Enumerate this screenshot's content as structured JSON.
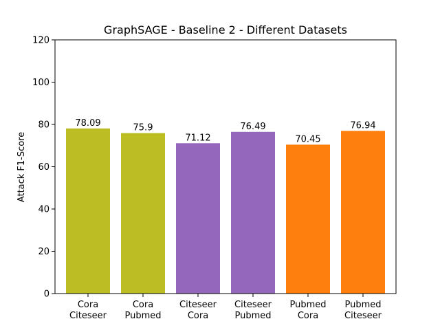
{
  "chart_data": {
    "type": "bar",
    "title": "GraphSAGE - Baseline 2 - Different Datasets",
    "xlabel": "",
    "ylabel": "Attack F1-Score",
    "ylim": [
      0,
      120
    ],
    "yticks": [
      0,
      20,
      40,
      60,
      80,
      100,
      120
    ],
    "grid": false,
    "legend": "none",
    "categories": [
      [
        "Cora",
        "Citeseer"
      ],
      [
        "Cora",
        "Pubmed"
      ],
      [
        "Citeseer",
        "Cora"
      ],
      [
        "Citeseer",
        "Pubmed"
      ],
      [
        "Pubmed",
        "Cora"
      ],
      [
        "Pubmed",
        "Citeseer"
      ]
    ],
    "values": [
      78.09,
      75.9,
      71.12,
      76.49,
      70.45,
      76.94
    ],
    "data_labels": [
      "78.09",
      "75.9",
      "71.12",
      "76.49",
      "70.45",
      "76.94"
    ],
    "colors": [
      "#bcbd22",
      "#bcbd22",
      "#9467bd",
      "#9467bd",
      "#ff7f0e",
      "#ff7f0e"
    ]
  }
}
